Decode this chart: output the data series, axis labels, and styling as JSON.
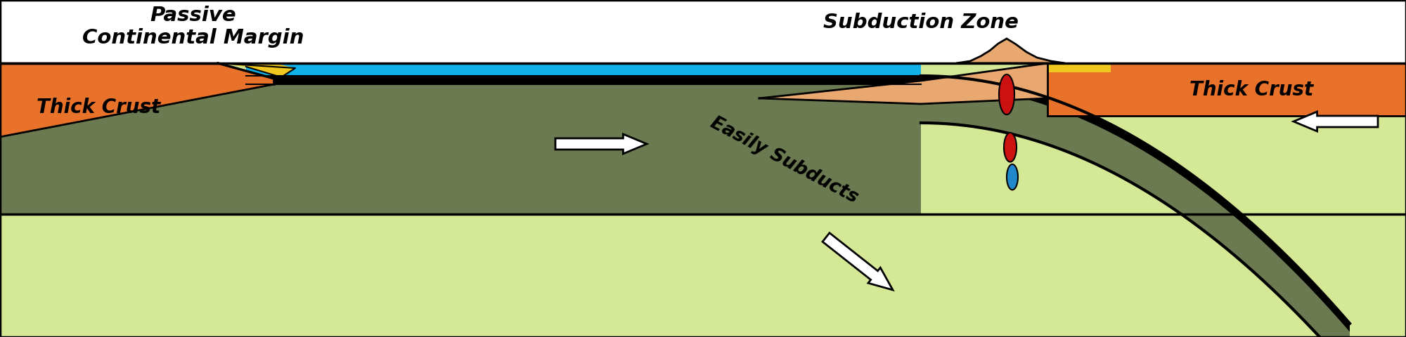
{
  "colors": {
    "background": "#ffffff",
    "light_yellow_green": "#d4e896",
    "olive_green": "#6b7a50",
    "orange_crust": "#e8722a",
    "peach": "#e8a870",
    "yellow_sediment": "#f0c820",
    "blue_ocean": "#10b0e8",
    "black": "#000000",
    "white": "#ffffff",
    "red_magma": "#cc1111",
    "blue_fluid": "#2288cc"
  },
  "labels": {
    "passive_margin": "Passive\nContinental Margin",
    "subduction_zone": "Subduction Zone",
    "thick_crust_left": "Thick Crust",
    "thick_crust_right": "Thick Crust",
    "easily_subducts": "Easily Subducts"
  },
  "figsize": [
    20.0,
    4.8
  ],
  "dpi": 100
}
